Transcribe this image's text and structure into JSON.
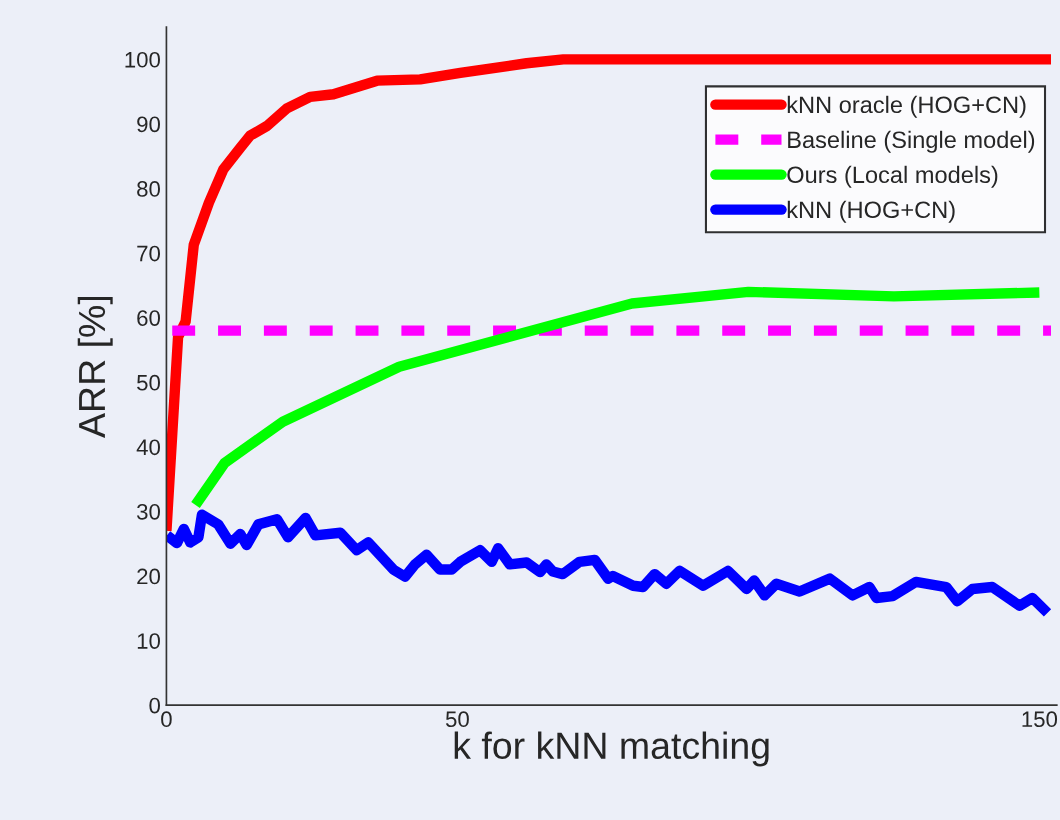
{
  "chart_data": {
    "type": "line",
    "xlabel": "k for kNN matching",
    "ylabel": "ARR [%]",
    "xlim": [
      0,
      153
    ],
    "ylim": [
      0,
      105
    ],
    "xticks": [
      0,
      50,
      150
    ],
    "yticks": [
      0,
      10,
      20,
      30,
      40,
      50,
      60,
      70,
      80,
      90,
      100
    ],
    "grid": false,
    "legend": "top right",
    "marker": "none",
    "series": [
      {
        "name": "kNN oracle (HOG+CN)",
        "color": "#ff0000",
        "line_style": "solid",
        "x": [
          0,
          1,
          2,
          3.3,
          4.7,
          7.3,
          9.8,
          12.7,
          14.4,
          17.3,
          20.7,
          24.7,
          28.7,
          36.2,
          43.6,
          50.5,
          61.9,
          68.2,
          100,
          152
        ],
        "values": [
          27,
          42,
          57,
          59.4,
          71.3,
          77.8,
          83,
          86.3,
          88.2,
          89.7,
          92.4,
          94.2,
          94.6,
          96.7,
          96.9,
          97.9,
          99.4,
          100,
          100,
          100
        ]
      },
      {
        "name": "Baseline (Single model)",
        "color": "#ff00ff",
        "line_style": "dashed",
        "x": [
          1,
          152
        ],
        "values": [
          58,
          58
        ]
      },
      {
        "name": "Ours (Local models)",
        "color": "#00ff00",
        "line_style": "solid",
        "x": [
          5,
          10,
          20,
          40,
          80,
          100,
          125,
          150
        ],
        "values": [
          31,
          37.5,
          43.9,
          52.4,
          62.2,
          64,
          63.3,
          63.9
        ]
      },
      {
        "name": "kNN (HOG+CN)",
        "color": "#0000ff",
        "line_style": "solid",
        "x": [
          0.1,
          1.8,
          3,
          4.1,
          5.5,
          6.1,
          8.9,
          11,
          12.7,
          13.8,
          15.8,
          19,
          20.9,
          23.9,
          25.6,
          29.9,
          32.7,
          34.7,
          39,
          41,
          42.7,
          44.7,
          47,
          49,
          50.5,
          53.9,
          55.9,
          57,
          59,
          61.9,
          64.2,
          65.3,
          66.4,
          68.1,
          71,
          73.6,
          75.9,
          76.7,
          80.2,
          81.9,
          83.9,
          85.9,
          88.2,
          92.2,
          96.5,
          99.7,
          101,
          102.8,
          104.8,
          108.8,
          114,
          117.9,
          120.8,
          122,
          124.8,
          128.8,
          134,
          135.9,
          138.5,
          141.9,
          146.6,
          148.8,
          151.4
        ],
        "values": [
          26.3,
          25.1,
          27.3,
          25.2,
          26,
          29.5,
          28,
          25,
          26.5,
          24.8,
          28,
          28.8,
          26,
          29,
          26.3,
          26.7,
          24,
          25.2,
          21,
          19.9,
          21.8,
          23.3,
          21,
          21,
          22.2,
          24,
          22.2,
          24.3,
          21.8,
          22.1,
          20.6,
          21.8,
          20.7,
          20.3,
          22.2,
          22.5,
          19.6,
          20,
          18.5,
          18.3,
          20.3,
          18.8,
          20.8,
          18.5,
          20.8,
          18,
          19.3,
          17,
          18.8,
          17.6,
          19.6,
          17,
          18.3,
          16.6,
          16.9,
          19.1,
          18.3,
          16.1,
          18,
          18.3,
          15.4,
          16.6,
          14.3
        ]
      }
    ]
  }
}
